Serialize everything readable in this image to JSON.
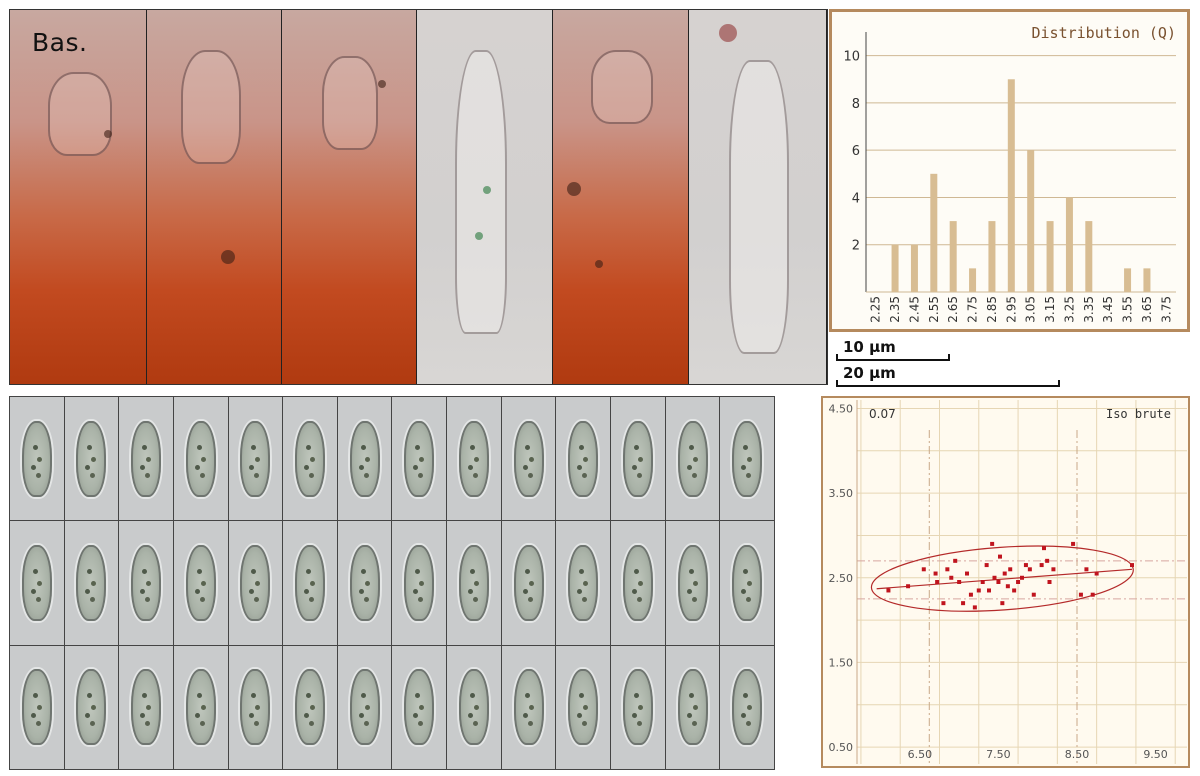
{
  "basidia": {
    "label": "Bas.",
    "panels": [
      {
        "tone": "warm"
      },
      {
        "tone": "warm"
      },
      {
        "tone": "warm"
      },
      {
        "tone": "pale"
      },
      {
        "tone": "warm"
      },
      {
        "tone": "pale"
      }
    ]
  },
  "scale_bars": [
    {
      "label": "10 µm"
    },
    {
      "label": "20 µm"
    }
  ],
  "spore_grid": {
    "rows": 3,
    "cols": 14
  },
  "colors": {
    "panel_border": "#b58a5e",
    "bar_fill": "#d8bd93",
    "grid_line": "#cfb894",
    "title_text": "#7a5230",
    "point": "#c0141e",
    "ellipse": "#b42a2a"
  },
  "chart_data": [
    {
      "type": "bar",
      "title": "Distribution (Q)",
      "categories": [
        "2.25",
        "2.35",
        "2.45",
        "2.55",
        "2.65",
        "2.75",
        "2.85",
        "2.95",
        "3.05",
        "3.15",
        "3.25",
        "3.35",
        "3.45",
        "3.55",
        "3.65",
        "3.75"
      ],
      "values": [
        0,
        2,
        2,
        5,
        3,
        1,
        3,
        9,
        6,
        3,
        4,
        3,
        0,
        1,
        1,
        0
      ],
      "yticks": [
        "2",
        "4",
        "6",
        "8",
        "10"
      ],
      "ylim": [
        0,
        11
      ],
      "grid": true
    },
    {
      "type": "scatter",
      "title": "Iso brute",
      "corner_label": "0.07",
      "xticks": [
        "6.50",
        "7.50",
        "8.50",
        "9.50"
      ],
      "yticks": [
        "0.50",
        "1.50",
        "2.50",
        "3.50",
        "4.50"
      ],
      "xlim": [
        5.7,
        9.9
      ],
      "ylim": [
        0.3,
        4.6
      ],
      "grid": true,
      "points": [
        [
          6.1,
          2.35
        ],
        [
          6.35,
          2.4
        ],
        [
          6.55,
          2.6
        ],
        [
          6.7,
          2.55
        ],
        [
          6.72,
          2.45
        ],
        [
          6.8,
          2.2
        ],
        [
          6.85,
          2.6
        ],
        [
          6.9,
          2.5
        ],
        [
          6.95,
          2.7
        ],
        [
          7.0,
          2.45
        ],
        [
          7.05,
          2.2
        ],
        [
          7.1,
          2.55
        ],
        [
          7.15,
          2.3
        ],
        [
          7.2,
          2.15
        ],
        [
          7.25,
          2.35
        ],
        [
          7.3,
          2.45
        ],
        [
          7.35,
          2.65
        ],
        [
          7.38,
          2.35
        ],
        [
          7.42,
          2.9
        ],
        [
          7.45,
          2.5
        ],
        [
          7.5,
          2.45
        ],
        [
          7.52,
          2.75
        ],
        [
          7.55,
          2.2
        ],
        [
          7.58,
          2.55
        ],
        [
          7.62,
          2.4
        ],
        [
          7.65,
          2.6
        ],
        [
          7.7,
          2.35
        ],
        [
          7.75,
          2.45
        ],
        [
          7.8,
          2.5
        ],
        [
          7.85,
          2.65
        ],
        [
          7.9,
          2.6
        ],
        [
          7.95,
          2.3
        ],
        [
          8.05,
          2.65
        ],
        [
          8.08,
          2.85
        ],
        [
          8.12,
          2.7
        ],
        [
          8.15,
          2.45
        ],
        [
          8.2,
          2.6
        ],
        [
          8.45,
          2.9
        ],
        [
          8.55,
          2.3
        ],
        [
          8.62,
          2.6
        ],
        [
          8.7,
          2.3
        ],
        [
          8.75,
          2.55
        ],
        [
          9.2,
          2.65
        ]
      ],
      "regression": [
        [
          5.95,
          2.37
        ],
        [
          9.2,
          2.6
        ]
      ],
      "ellipse": {
        "cx": 7.55,
        "cy": 2.49,
        "rx": 1.67,
        "ry": 0.37,
        "angle": -4.0
      },
      "vlines_dashdot": [
        6.62,
        8.5
      ],
      "hlines_dashdot": [
        2.25,
        2.7
      ]
    }
  ]
}
